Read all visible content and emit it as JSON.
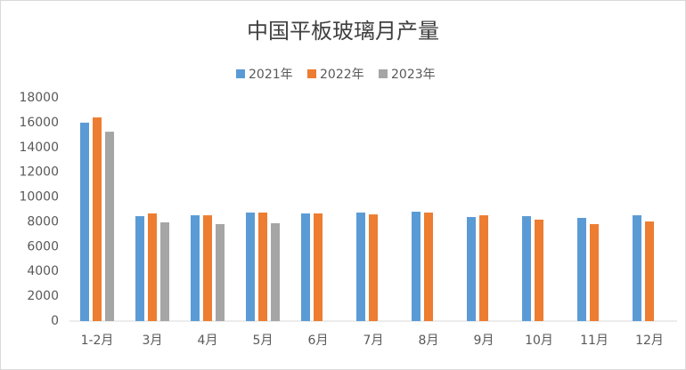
{
  "chart_data": {
    "type": "bar",
    "title": "中国平板玻璃月产量",
    "categories": [
      "1-2月",
      "3月",
      "4月",
      "5月",
      "6月",
      "7月",
      "8月",
      "9月",
      "10月",
      "11月",
      "12月"
    ],
    "series": [
      {
        "name": "2021年",
        "color": "#5b9bd5",
        "values": [
          16000,
          8460,
          8530,
          8750,
          8680,
          8750,
          8820,
          8390,
          8460,
          8320,
          8530
        ]
      },
      {
        "name": "2022年",
        "color": "#ed7d31",
        "values": [
          16420,
          8680,
          8530,
          8750,
          8680,
          8600,
          8750,
          8530,
          8180,
          7820,
          8030
        ]
      },
      {
        "name": "2023年",
        "color": "#a5a5a5",
        "values": [
          15270,
          7960,
          7820,
          7890,
          null,
          null,
          null,
          null,
          null,
          null,
          null
        ]
      }
    ],
    "ylim": [
      0,
      18000
    ],
    "yticks": [
      0,
      2000,
      4000,
      6000,
      8000,
      10000,
      12000,
      14000,
      16000,
      18000
    ],
    "grid": false
  }
}
